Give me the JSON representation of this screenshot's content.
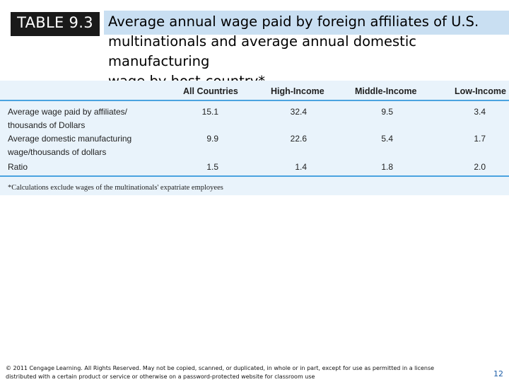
{
  "header": {
    "tag": "TABLE 9.3",
    "title_line1": "Average annual wage paid by foreign affiliates of U.S.",
    "title_line2": "multinationals and average annual domestic manufacturing",
    "title_line3": "wage by host-country*"
  },
  "table": {
    "columns": [
      "All Countries",
      "High-Income",
      "Middle-Income",
      "Low-Income"
    ],
    "rows": [
      {
        "label_line1": "Average wage paid by affiliates/",
        "label_line2": "thousands of Dollars",
        "values": [
          "15.1",
          "32.4",
          "9.5",
          "3.4"
        ]
      },
      {
        "label_line1": "Average domestic manufacturing",
        "label_line2": "wage/thousands of dollars",
        "values": [
          "9.9",
          "22.6",
          "5.4",
          "1.7"
        ]
      },
      {
        "label_line1": "Ratio",
        "label_line2": "",
        "values": [
          "1.5",
          "1.4",
          "1.8",
          "2.0"
        ]
      }
    ],
    "footnote": "*Calculations exclude wages of the multinationals' expatriate employees"
  },
  "footer": {
    "copyright_line1": "© 2011 Cengage Learning. All Rights Reserved. May not be copied, scanned, or duplicated, in whole or in part, except for use as permitted in a license",
    "copyright_line2": "distributed with a certain product or service or otherwise on a password-protected website for classroom use",
    "page_number": "12"
  },
  "colors": {
    "title_highlight": "#c9dff2",
    "table_background": "#e9f3fb",
    "rule": "#4aa3e0",
    "tag_background": "#1a1a1a"
  }
}
